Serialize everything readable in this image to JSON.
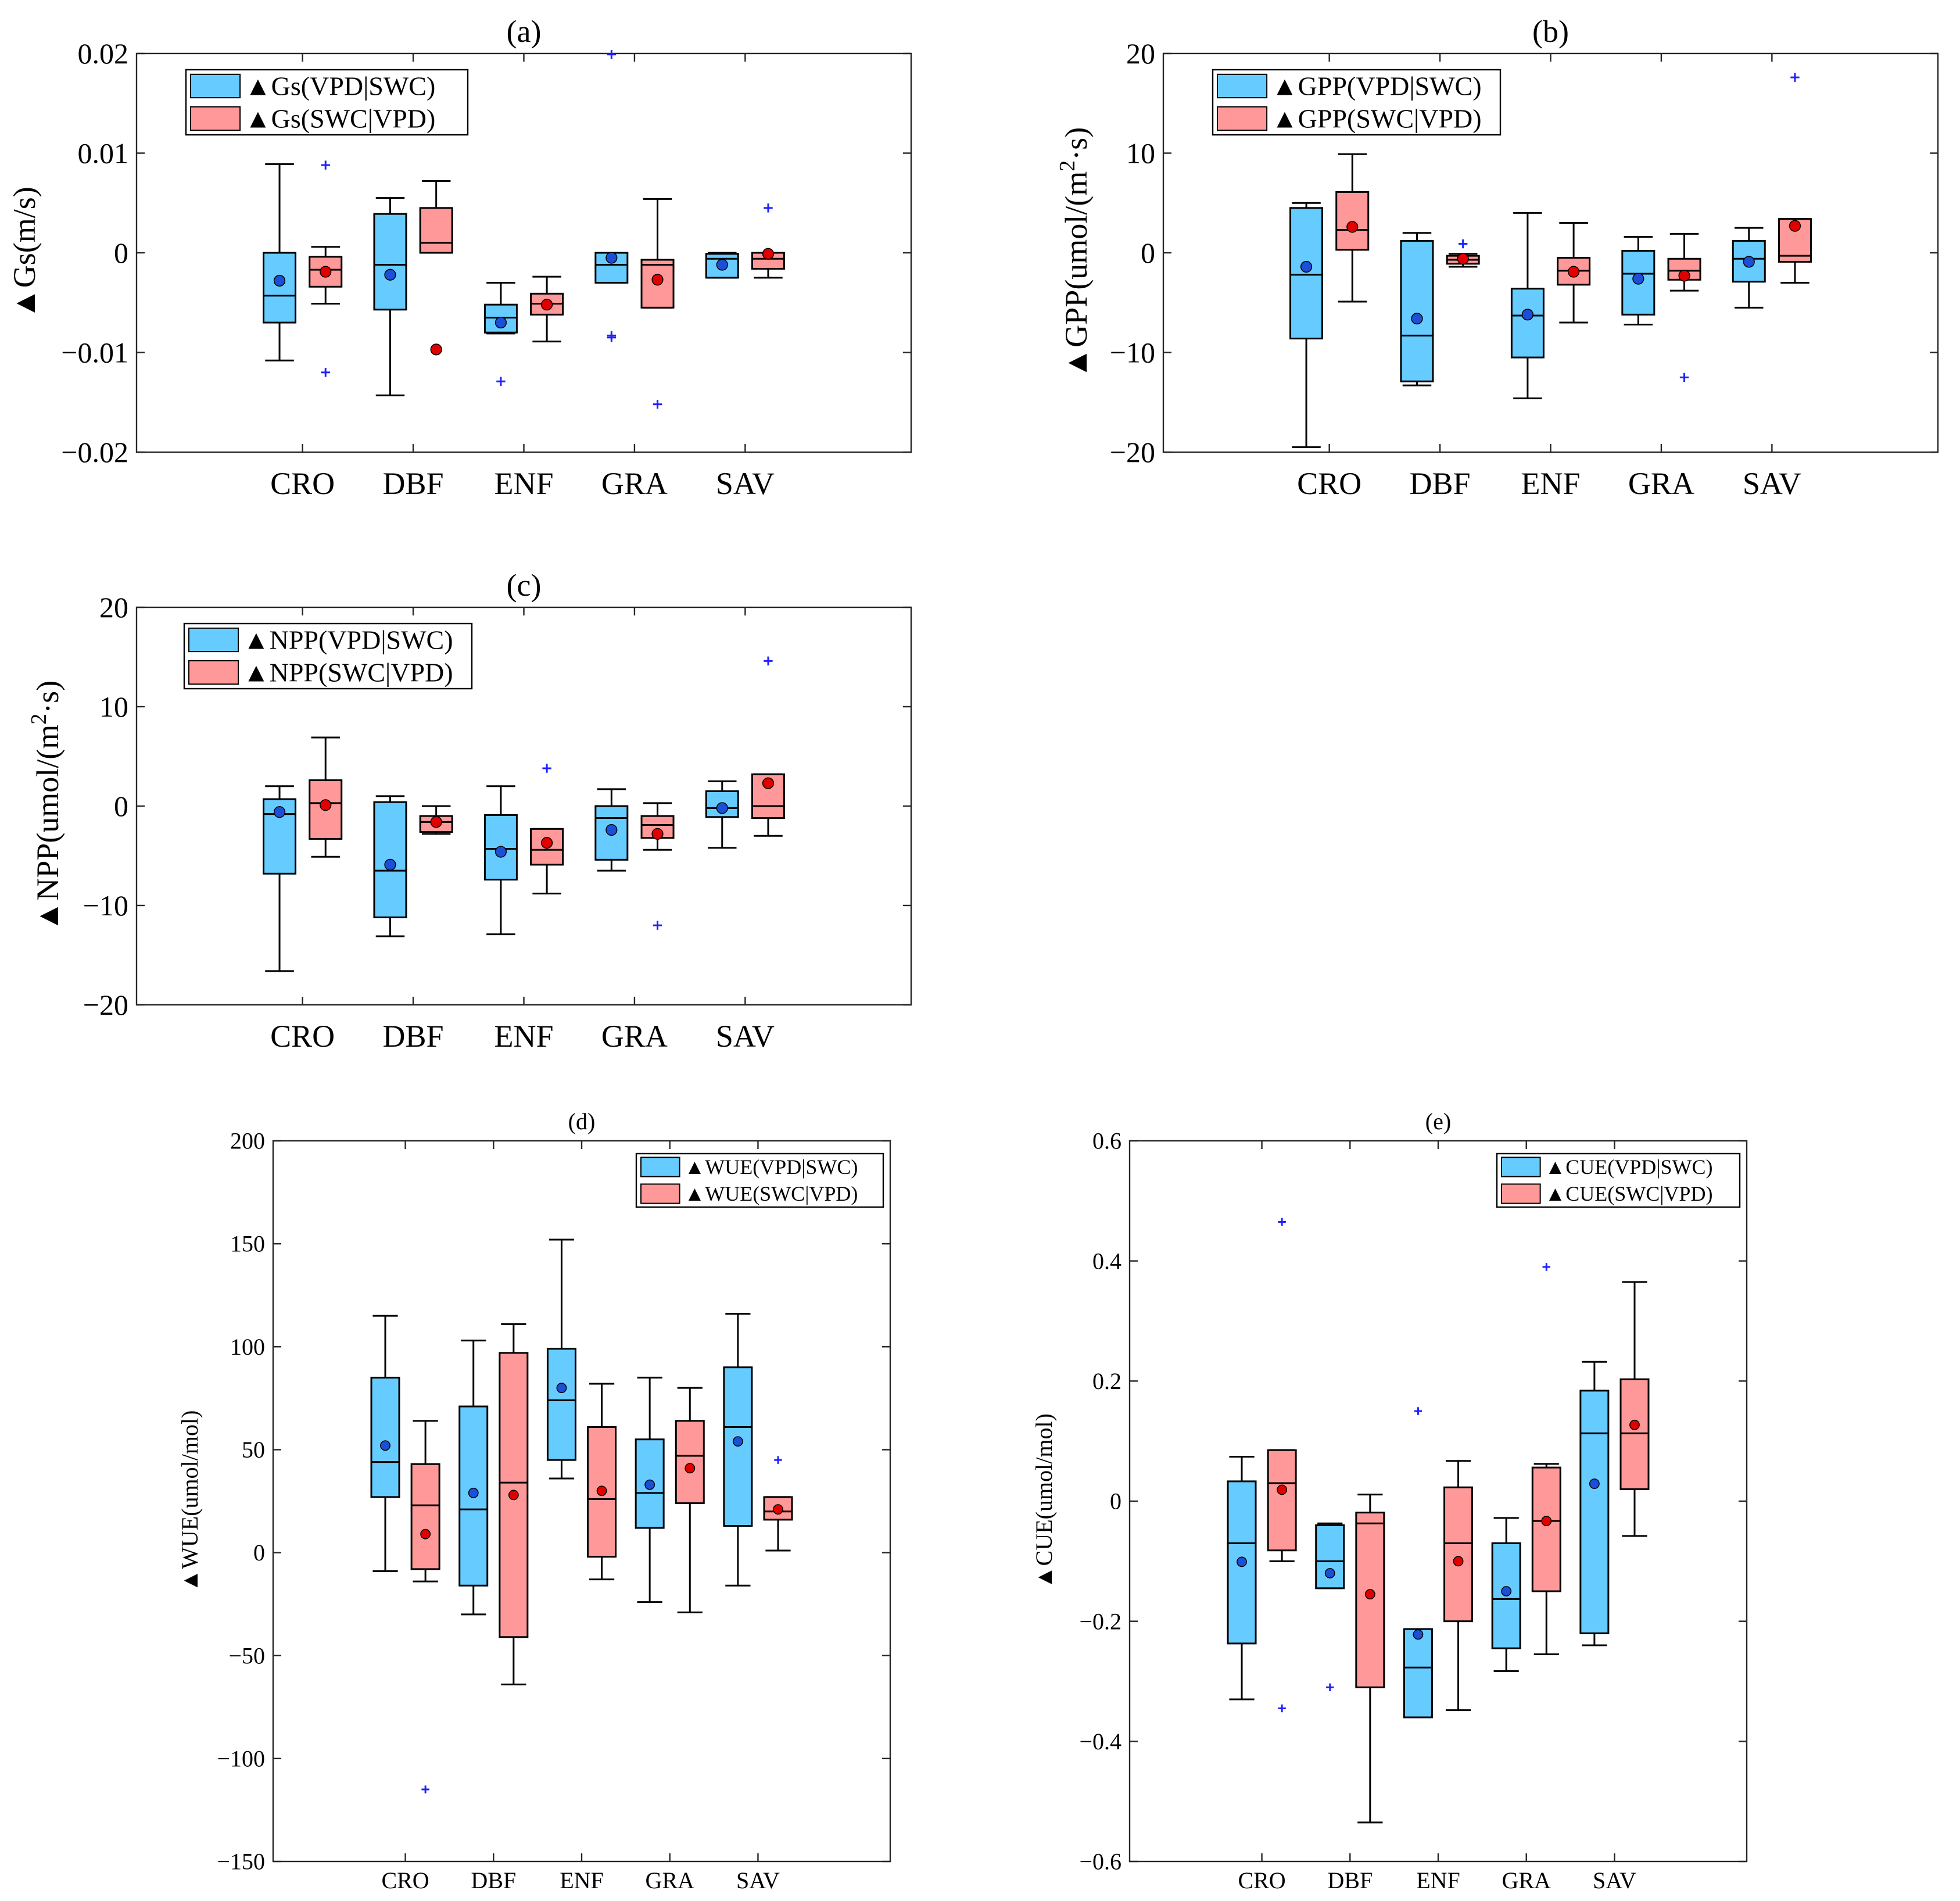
{
  "colors": {
    "vpd_swc": "#66ccff",
    "swc_vpd": "#ff9999",
    "mean_vpd_swc": "#1a4fd6",
    "mean_swc_vpd": "#e00000",
    "outlier": "#1f1fff"
  },
  "chart_data": [
    {
      "type": "box",
      "title": "(a)",
      "ylabel": "▲Gs(m/s)",
      "categories": [
        "CRO",
        "DBF",
        "ENF",
        "GRA",
        "SAV"
      ],
      "ylim": [
        -0.02,
        0.02
      ],
      "yticks": [
        -0.02,
        -0.01,
        0,
        0.01,
        0.02
      ],
      "ytick_labels": [
        "−0.02",
        "−0.01",
        "0",
        "0.01",
        "0.02"
      ],
      "legend": [
        "▲Gs(VPD|SWC)",
        "▲Gs(SWC|VPD)"
      ],
      "legend_position": "top-left",
      "series": [
        {
          "name": "▲Gs(VPD|SWC)",
          "boxes": [
            {
              "min": -0.0108,
              "q1": -0.007,
              "median": -0.0043,
              "q3": 0.0,
              "max": 0.0089,
              "mean": -0.0028,
              "outliers": []
            },
            {
              "min": -0.0143,
              "q1": -0.0057,
              "median": -0.0012,
              "q3": 0.0039,
              "max": 0.0055,
              "mean": -0.0022,
              "outliers": []
            },
            {
              "min": -0.0081,
              "q1": -0.008,
              "median": -0.0065,
              "q3": -0.0052,
              "max": -0.003,
              "mean": -0.007,
              "outliers": [
                -0.0129
              ]
            },
            {
              "min": -0.003,
              "q1": -0.003,
              "median": -0.0012,
              "q3": 0.0,
              "max": 0.0,
              "mean": -0.0005,
              "outliers": [
                0.0199,
                -0.0083,
                -0.0085
              ]
            },
            {
              "min": -0.0025,
              "q1": -0.0025,
              "median": -0.0006,
              "q3": -0.0001,
              "max": 0.0,
              "mean": -0.0012,
              "outliers": []
            }
          ]
        },
        {
          "name": "▲Gs(SWC|VPD)",
          "boxes": [
            {
              "min": -0.0051,
              "q1": -0.0034,
              "median": -0.0017,
              "q3": -0.0004,
              "max": 0.0006,
              "mean": -0.0019,
              "outliers": [
                0.0088,
                -0.012
              ]
            },
            {
              "min": 0.0,
              "q1": 0.0,
              "median": 0.001,
              "q3": 0.0045,
              "max": 0.0072,
              "mean": -0.0097,
              "outliers": []
            },
            {
              "min": -0.0089,
              "q1": -0.0062,
              "median": -0.0051,
              "q3": -0.0041,
              "max": -0.0024,
              "mean": -0.0052,
              "outliers": []
            },
            {
              "min": -0.0055,
              "q1": -0.0055,
              "median": -0.0012,
              "q3": -0.0007,
              "max": 0.0054,
              "mean": -0.0027,
              "outliers": [
                -0.0152
              ]
            },
            {
              "min": -0.0025,
              "q1": -0.0016,
              "median": -0.0006,
              "q3": 0.0,
              "max": 0.0,
              "mean": -0.0001,
              "outliers": [
                0.0045
              ]
            }
          ]
        }
      ]
    },
    {
      "type": "box",
      "title": "(b)",
      "ylabel_main": "▲GPP(umol/(m",
      "ylabel_sup": "2",
      "ylabel_tail": "·s)",
      "categories": [
        "CRO",
        "DBF",
        "ENF",
        "GRA",
        "SAV"
      ],
      "ylim": [
        -20,
        20
      ],
      "yticks": [
        -20,
        -10,
        0,
        10,
        20
      ],
      "ytick_labels": [
        "−20",
        "−10",
        "0",
        "10",
        "20"
      ],
      "legend": [
        "▲GPP(VPD|SWC)",
        "▲GPP(SWC|VPD)"
      ],
      "legend_position": "top-left",
      "series": [
        {
          "name": "▲GPP(VPD|SWC)",
          "boxes": [
            {
              "min": -19.5,
              "q1": -8.6,
              "median": -2.2,
              "q3": 4.5,
              "max": 5.0,
              "mean": -1.4,
              "outliers": []
            },
            {
              "min": -13.3,
              "q1": -12.9,
              "median": -8.3,
              "q3": 1.2,
              "max": 2.0,
              "mean": -6.6,
              "outliers": []
            },
            {
              "min": -14.6,
              "q1": -10.5,
              "median": -6.3,
              "q3": -3.6,
              "max": 4.0,
              "mean": -6.2,
              "outliers": []
            },
            {
              "min": -7.2,
              "q1": -6.2,
              "median": -2.1,
              "q3": 0.2,
              "max": 1.6,
              "mean": -2.6,
              "outliers": []
            },
            {
              "min": -5.5,
              "q1": -2.9,
              "median": -0.6,
              "q3": 1.2,
              "max": 2.5,
              "mean": -0.9,
              "outliers": []
            }
          ]
        },
        {
          "name": "▲GPP(SWC|VPD)",
          "boxes": [
            {
              "min": -4.9,
              "q1": 0.3,
              "median": 2.3,
              "q3": 6.1,
              "max": 9.9,
              "mean": 2.6,
              "outliers": []
            },
            {
              "min": -1.4,
              "q1": -1.1,
              "median": -0.7,
              "q3": -0.3,
              "max": -0.1,
              "mean": -0.6,
              "outliers": [
                0.9
              ]
            },
            {
              "min": -7.0,
              "q1": -3.2,
              "median": -1.8,
              "q3": -0.5,
              "max": 3.0,
              "mean": -1.9,
              "outliers": []
            },
            {
              "min": -3.8,
              "q1": -2.7,
              "median": -1.8,
              "q3": -0.6,
              "max": 1.9,
              "mean": -2.3,
              "outliers": [
                -12.5
              ]
            },
            {
              "min": -3.0,
              "q1": -0.9,
              "median": -0.3,
              "q3": 3.4,
              "max": 3.4,
              "mean": 2.7,
              "outliers": [
                17.6
              ]
            }
          ]
        }
      ]
    },
    {
      "type": "box",
      "title": "(c)",
      "ylabel_main": "▲NPP(umol/(m",
      "ylabel_sup": "2",
      "ylabel_tail": "·s)",
      "categories": [
        "CRO",
        "DBF",
        "ENF",
        "GRA",
        "SAV"
      ],
      "ylim": [
        -20,
        20
      ],
      "yticks": [
        -20,
        -10,
        0,
        10,
        20
      ],
      "ytick_labels": [
        "−20",
        "−10",
        "0",
        "10",
        "20"
      ],
      "legend": [
        "▲NPP(VPD|SWC)",
        "▲NPP(SWC|VPD)"
      ],
      "legend_position": "top-left",
      "series": [
        {
          "name": "▲NPP(VPD|SWC)",
          "boxes": [
            {
              "min": -16.6,
              "q1": -6.8,
              "median": -0.8,
              "q3": 0.7,
              "max": 2.0,
              "mean": -0.6,
              "outliers": []
            },
            {
              "min": -13.1,
              "q1": -11.2,
              "median": -6.5,
              "q3": 0.4,
              "max": 1.0,
              "mean": -5.9,
              "outliers": []
            },
            {
              "min": -12.9,
              "q1": -7.4,
              "median": -4.3,
              "q3": -0.9,
              "max": 2.0,
              "mean": -4.6,
              "outliers": []
            },
            {
              "min": -6.5,
              "q1": -5.4,
              "median": -1.2,
              "q3": 0.0,
              "max": 1.7,
              "mean": -2.4,
              "outliers": []
            },
            {
              "min": -4.2,
              "q1": -1.1,
              "median": -0.2,
              "q3": 1.5,
              "max": 2.5,
              "mean": -0.2,
              "outliers": []
            }
          ]
        },
        {
          "name": "▲NPP(SWC|VPD)",
          "boxes": [
            {
              "min": -5.1,
              "q1": -3.3,
              "median": 0.3,
              "q3": 2.6,
              "max": 6.9,
              "mean": 0.1,
              "outliers": []
            },
            {
              "min": -2.8,
              "q1": -2.6,
              "median": -1.6,
              "q3": -1.0,
              "max": 0.0,
              "mean": -1.6,
              "outliers": []
            },
            {
              "min": -8.8,
              "q1": -5.9,
              "median": -4.4,
              "q3": -2.3,
              "max": -2.3,
              "mean": -3.7,
              "outliers": [
                3.8
              ]
            },
            {
              "min": -4.4,
              "q1": -3.2,
              "median": -1.9,
              "q3": -1.0,
              "max": 0.3,
              "mean": -2.8,
              "outliers": [
                -12.0
              ]
            },
            {
              "min": -3.0,
              "q1": -1.2,
              "median": 0.0,
              "q3": 3.2,
              "max": 3.2,
              "mean": 2.3,
              "outliers": [
                14.6
              ]
            }
          ]
        }
      ]
    },
    {
      "type": "box",
      "title": "(d)",
      "ylabel": "▲WUE(umol/mol)",
      "categories": [
        "CRO",
        "DBF",
        "ENF",
        "GRA",
        "SAV"
      ],
      "ylim": [
        -150,
        200
      ],
      "yticks": [
        -150,
        -100,
        -50,
        0,
        50,
        100,
        150,
        200
      ],
      "ytick_labels": [
        "−150",
        "−100",
        "−50",
        "0",
        "50",
        "100",
        "150",
        "200"
      ],
      "legend": [
        "▲WUE(VPD|SWC)",
        "▲WUE(SWC|VPD)"
      ],
      "legend_position": "top-right",
      "series": [
        {
          "name": "▲WUE(VPD|SWC)",
          "boxes": [
            {
              "min": -9.0,
              "q1": 27.0,
              "median": 44.0,
              "q3": 85.0,
              "max": 115.0,
              "mean": 52.0,
              "outliers": []
            },
            {
              "min": -30.0,
              "q1": -16.0,
              "median": 21.0,
              "q3": 71.0,
              "max": 103.0,
              "mean": 29.0,
              "outliers": []
            },
            {
              "min": 36.0,
              "q1": 45.0,
              "median": 74.0,
              "q3": 99.0,
              "max": 152.0,
              "mean": 80.0,
              "outliers": []
            },
            {
              "min": -24.0,
              "q1": 12.0,
              "median": 29.0,
              "q3": 55.0,
              "max": 85.0,
              "mean": 33.0,
              "outliers": []
            },
            {
              "min": -16.0,
              "q1": 13.0,
              "median": 61.0,
              "q3": 90.0,
              "max": 116.0,
              "mean": 54.0,
              "outliers": []
            }
          ]
        },
        {
          "name": "▲WUE(SWC|VPD)",
          "boxes": [
            {
              "min": -14.0,
              "q1": -8.0,
              "median": 23.0,
              "q3": 43.0,
              "max": 64.0,
              "mean": 9.0,
              "outliers": [
                -115.0
              ]
            },
            {
              "min": -64.0,
              "q1": -41.0,
              "median": 34.0,
              "q3": 97.0,
              "max": 111.0,
              "mean": 28.0,
              "outliers": []
            },
            {
              "min": -13.0,
              "q1": -2.0,
              "median": 26.0,
              "q3": 61.0,
              "max": 82.0,
              "mean": 30.0,
              "outliers": []
            },
            {
              "min": -29.0,
              "q1": 24.0,
              "median": 47.0,
              "q3": 64.0,
              "max": 80.0,
              "mean": 41.0,
              "outliers": []
            },
            {
              "min": 1.0,
              "q1": 16.0,
              "median": 20.0,
              "q3": 27.0,
              "max": 27.0,
              "mean": 21.0,
              "outliers": [
                45.0
              ]
            }
          ]
        }
      ]
    },
    {
      "type": "box",
      "title": "(e)",
      "ylabel": "▲CUE(umol/mol)",
      "categories": [
        "CRO",
        "DBF",
        "ENF",
        "GRA",
        "SAV"
      ],
      "ylim": [
        -0.6,
        0.6
      ],
      "yticks": [
        -0.6,
        -0.4,
        -0.2,
        0,
        0.2,
        0.4,
        0.6
      ],
      "ytick_labels": [
        "−0.6",
        "−0.4",
        "−0.2",
        "0",
        "0.2",
        "0.4",
        "0.6"
      ],
      "legend": [
        "▲CUE(VPD|SWC)",
        "▲CUE(SWC|VPD)"
      ],
      "legend_position": "top-right",
      "series": [
        {
          "name": "▲CUE(VPD|SWC)",
          "boxes": [
            {
              "min": -0.33,
              "q1": -0.237,
              "median": -0.07,
              "q3": 0.033,
              "max": 0.074,
              "mean": -0.101,
              "outliers": []
            },
            {
              "min": -0.145,
              "q1": -0.145,
              "median": -0.1,
              "q3": -0.04,
              "max": -0.037,
              "mean": -0.12,
              "outliers": [
                -0.31
              ]
            },
            {
              "min": -0.36,
              "q1": -0.36,
              "median": -0.277,
              "q3": -0.213,
              "max": -0.213,
              "mean": -0.222,
              "outliers": [
                0.15
              ]
            },
            {
              "min": -0.283,
              "q1": -0.245,
              "median": -0.163,
              "q3": -0.07,
              "max": -0.028,
              "mean": -0.15,
              "outliers": []
            },
            {
              "min": -0.24,
              "q1": -0.22,
              "median": 0.113,
              "q3": 0.184,
              "max": 0.232,
              "mean": 0.029,
              "outliers": []
            }
          ]
        },
        {
          "name": "▲CUE(SWC|VPD)",
          "boxes": [
            {
              "min": -0.1,
              "q1": -0.082,
              "median": 0.03,
              "q3": 0.085,
              "max": 0.085,
              "mean": 0.019,
              "outliers": [
                0.465,
                -0.345
              ]
            },
            {
              "min": -0.535,
              "q1": -0.31,
              "median": -0.037,
              "q3": -0.019,
              "max": 0.011,
              "mean": -0.155,
              "outliers": []
            },
            {
              "min": -0.348,
              "q1": -0.2,
              "median": -0.07,
              "q3": 0.023,
              "max": 0.067,
              "mean": -0.1,
              "outliers": []
            },
            {
              "min": -0.255,
              "q1": -0.15,
              "median": -0.033,
              "q3": 0.056,
              "max": 0.062,
              "mean": -0.033,
              "outliers": [
                0.39
              ]
            },
            {
              "min": -0.058,
              "q1": 0.02,
              "median": 0.113,
              "q3": 0.203,
              "max": 0.365,
              "mean": 0.127,
              "outliers": []
            }
          ]
        }
      ]
    }
  ]
}
